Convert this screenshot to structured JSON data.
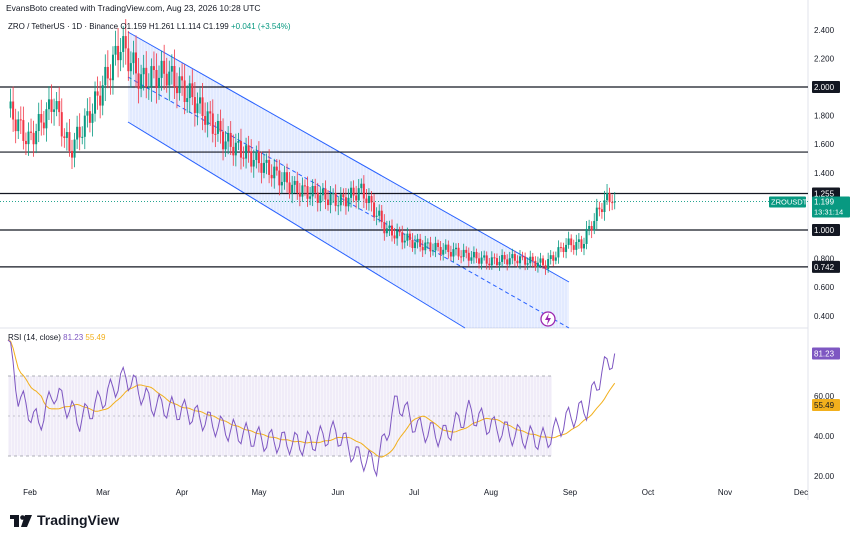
{
  "header": {
    "credit": "EvansBoto created with TradingView.com, Aug 23, 2026 10:28 UTC",
    "symbol_line": "ZRO / TetherUS · 1D · Binance",
    "ohlc": "O1.159 H1.261 L1.114 C1.199",
    "change": "+0.041 (+3.54%)"
  },
  "rsi": {
    "label": "RSI (14, close)",
    "value": "81.23",
    "ma_value": "55.49",
    "levels": [
      "60.00",
      "40.00",
      "20.00"
    ]
  },
  "price_axis": {
    "ticks": [
      "2.400",
      "2.200",
      "2.000",
      "1.800",
      "1.600",
      "1.400",
      "1.255",
      "1.200",
      "1.000",
      "0.800",
      "0.742",
      "0.600",
      "0.400"
    ]
  },
  "levels": [
    {
      "value": 2.0,
      "label": "2.000"
    },
    {
      "value": 1.545,
      "label": "1.545"
    },
    {
      "value": 1.255,
      "label": "1.255"
    },
    {
      "value": 1.0,
      "label": "1.000"
    },
    {
      "value": 0.742,
      "label": "0.742"
    }
  ],
  "last_price": {
    "symbol": "ZROUSDT",
    "price": "1.199",
    "countdown": "13:31:14",
    "color": "#089981"
  },
  "time_axis": [
    "Feb",
    "Mar",
    "Apr",
    "May",
    "Jun",
    "Jul",
    "Aug",
    "Sep",
    "Oct",
    "Nov",
    "Dec"
  ],
  "brand": "TradingView",
  "colors": {
    "up": "#089981",
    "down": "#f23645",
    "channel": "#2962ff",
    "rsi": "#7e57c2",
    "rsi_ma": "#f2b01d"
  }
}
